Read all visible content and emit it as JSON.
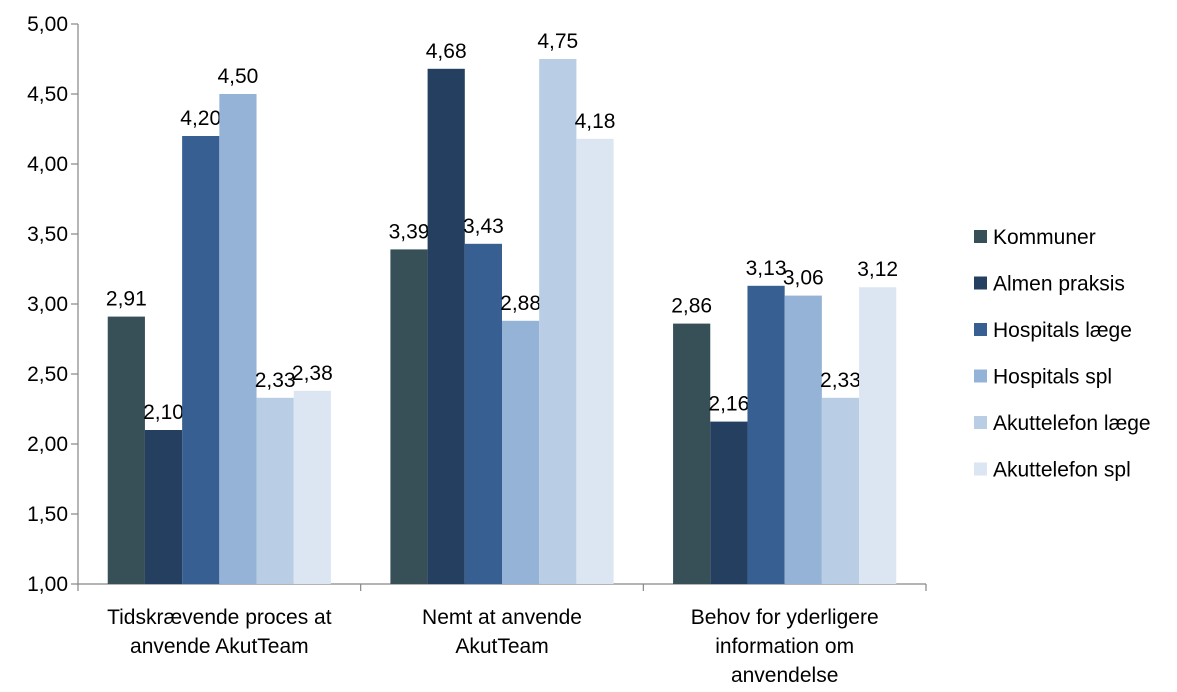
{
  "chart_data": {
    "type": "bar",
    "title": "",
    "xlabel": "",
    "ylabel": "",
    "ylim": [
      1.0,
      5.0
    ],
    "ytick_step": 0.5,
    "grid": false,
    "legend_position": "right",
    "categories": [
      [
        "Tidskrævende proces at",
        "anvende AkutTeam"
      ],
      [
        "Nemt at anvende",
        "AkutTeam"
      ],
      [
        "Behov for yderligere",
        "information om",
        "anvendelse"
      ]
    ],
    "series": [
      {
        "name": "Kommuner",
        "color": "#374f57",
        "values": [
          2.91,
          3.39,
          2.86
        ],
        "labels": [
          "2,91",
          "3,39",
          "2,86"
        ]
      },
      {
        "name": "Almen praksis",
        "color": "#253f60",
        "values": [
          2.1,
          4.68,
          2.16
        ],
        "labels": [
          "2,10",
          "4,68",
          "2,16"
        ]
      },
      {
        "name": "Hospitals læge",
        "color": "#375f92",
        "values": [
          4.2,
          3.43,
          3.13
        ],
        "labels": [
          "4,20",
          "3,43",
          "3,13"
        ]
      },
      {
        "name": "Hospitals spl",
        "color": "#95b3d7",
        "values": [
          4.5,
          2.88,
          3.06
        ],
        "labels": [
          "4,50",
          "2,88",
          "3,06"
        ]
      },
      {
        "name": "Akuttelefon læge",
        "color": "#b9cde4",
        "values": [
          2.33,
          4.75,
          2.33
        ],
        "labels": [
          "2,33",
          "4,75",
          "2,33"
        ]
      },
      {
        "name": "Akuttelefon spl",
        "color": "#dce6f2",
        "values": [
          2.38,
          4.18,
          3.12
        ],
        "labels": [
          "2,38",
          "4,18",
          "3,12"
        ]
      }
    ],
    "ytick_labels": [
      "1,00",
      "1,50",
      "2,00",
      "2,50",
      "3,00",
      "3,50",
      "4,00",
      "4,50",
      "5,00"
    ]
  }
}
